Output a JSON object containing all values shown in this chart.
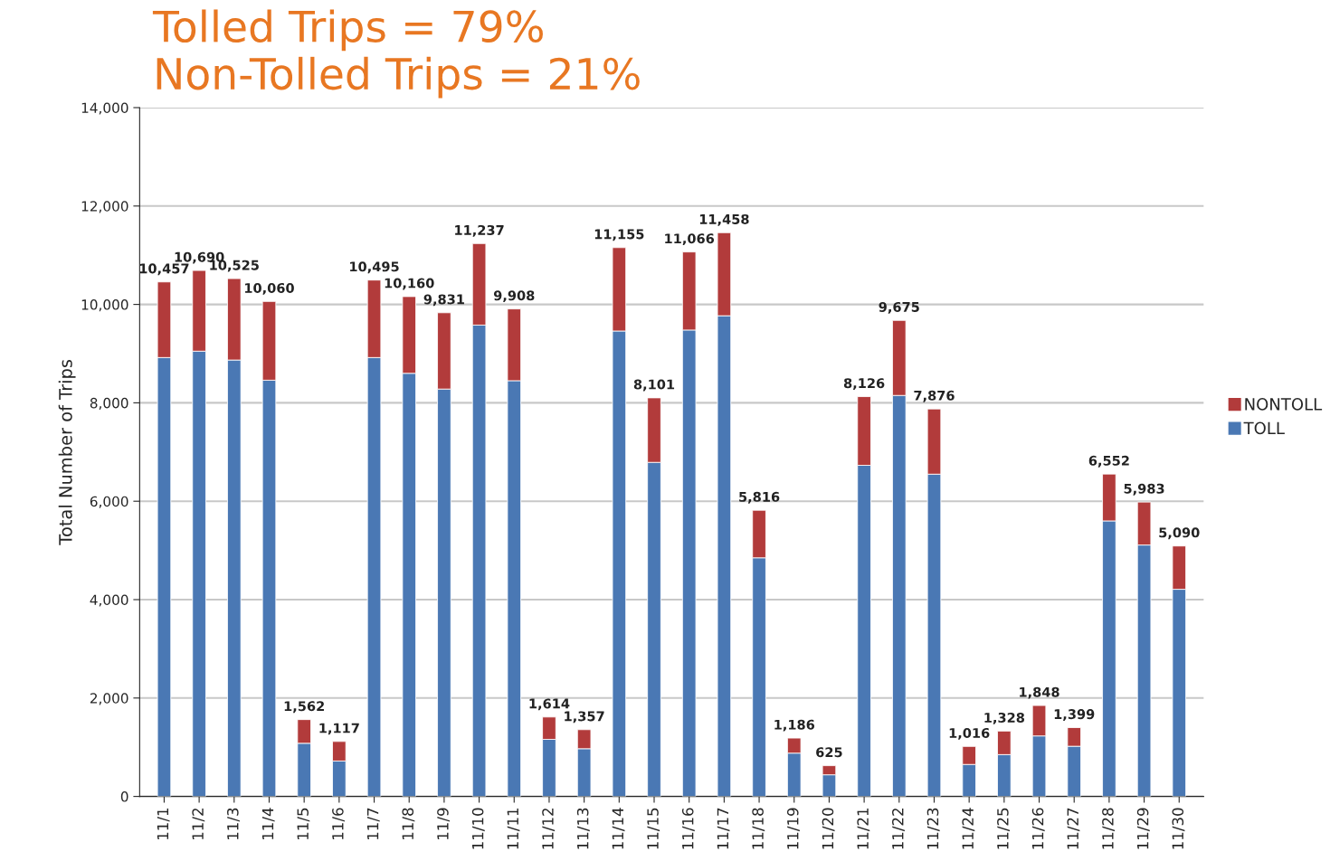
{
  "chart_data": {
    "type": "bar",
    "title": "Tolled Trips = 79%",
    "subtitle": "Non-Tolled Trips = 21%",
    "ylabel": "Total Number of Trips",
    "categories": [
      "11/1",
      "11/2",
      "11/3",
      "11/4",
      "11/5",
      "11/6",
      "11/7",
      "11/8",
      "11/9",
      "11/10",
      "11/11",
      "11/12",
      "11/13",
      "11/14",
      "11/15",
      "11/16",
      "11/17",
      "11/18",
      "11/19",
      "11/20",
      "11/21",
      "11/22",
      "11/23",
      "11/24",
      "11/25",
      "11/26",
      "11/27",
      "11/28",
      "11/29",
      "11/30"
    ],
    "stacked": true,
    "series": [
      {
        "name": "TOLL",
        "color": "#4a78b4",
        "values": [
          8920,
          9050,
          8870,
          8460,
          1080,
          720,
          8920,
          8600,
          8280,
          9580,
          8450,
          1160,
          970,
          9460,
          6790,
          9480,
          9770,
          4850,
          880,
          440,
          6730,
          8150,
          6550,
          650,
          850,
          1230,
          1020,
          5600,
          5110,
          4210
        ]
      },
      {
        "name": "NONTOLL",
        "color": "#b23b3b",
        "values": [
          1537,
          1640,
          1655,
          1600,
          482,
          397,
          1575,
          1560,
          1551,
          1657,
          1458,
          454,
          387,
          1695,
          1311,
          1586,
          1688,
          966,
          306,
          185,
          1396,
          1525,
          1326,
          366,
          478,
          618,
          379,
          952,
          873,
          880
        ]
      }
    ],
    "totals": [
      "10,457",
      "10,690",
      "10,525",
      "10,060",
      "1,562",
      "1,117",
      "10,495",
      "10,160",
      "9,831",
      "11,237",
      "9,908",
      "1,614",
      "1,357",
      "11,155",
      "8,101",
      "11,066",
      "11,458",
      "5,816",
      "1,186",
      "625",
      "8,126",
      "9,675",
      "7,876",
      "1,016",
      "1,328",
      "1,848",
      "1,399",
      "6,552",
      "5,983",
      "5,090"
    ],
    "ylim": [
      0,
      14000
    ],
    "yticks": [
      {
        "value": 0,
        "label": "0"
      },
      {
        "value": 2000,
        "label": "2,000"
      },
      {
        "value": 4000,
        "label": "4,000"
      },
      {
        "value": 6000,
        "label": "6,000"
      },
      {
        "value": 8000,
        "label": "8,000"
      },
      {
        "value": 10000,
        "label": "10,000"
      },
      {
        "value": 12000,
        "label": "12,000"
      },
      {
        "value": 14000,
        "label": "14,000"
      }
    ],
    "grid": "y",
    "legend": "right"
  }
}
